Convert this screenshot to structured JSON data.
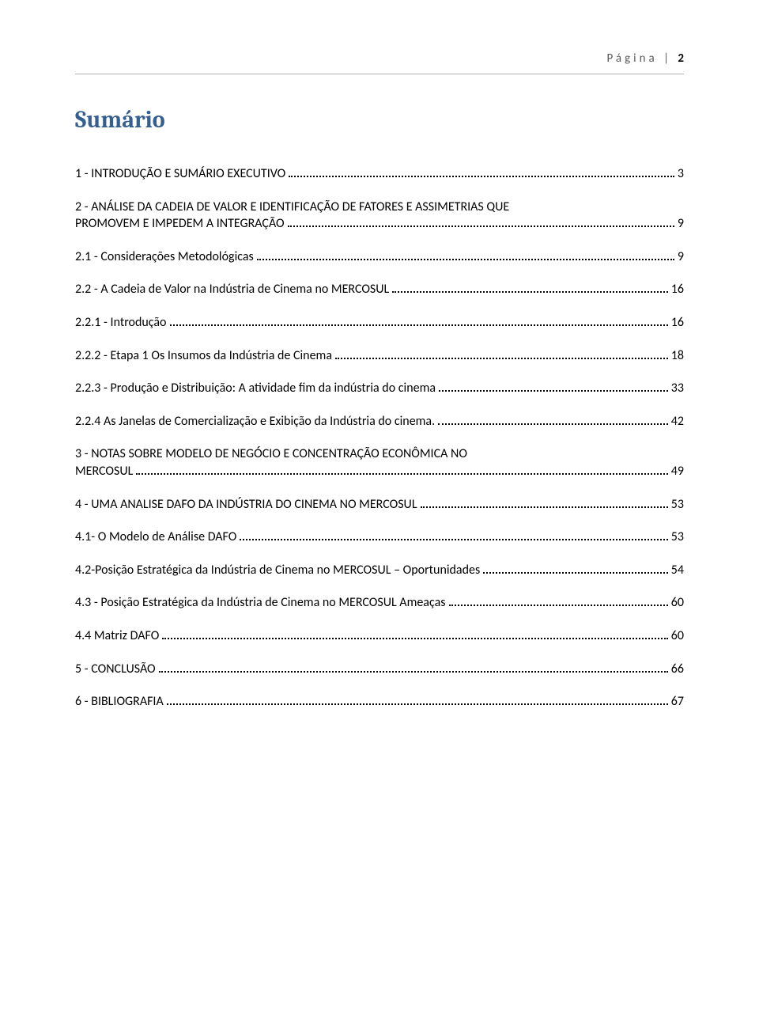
{
  "header": {
    "label": "Página",
    "separator": "|",
    "page_number": "2"
  },
  "title": "Sumário",
  "colors": {
    "title_color": "#365f91",
    "header_text_color": "#5a5a5a",
    "body_text_color": "#000000",
    "rule_color": "#b0b0b0",
    "background": "#ffffff"
  },
  "typography": {
    "title_font": "Cambria",
    "title_size_pt": 22,
    "body_font": "Calibri",
    "body_size_pt": 12
  },
  "toc": [
    {
      "level": 1,
      "text": "1 - INTRODUÇÃO E SUMÁRIO EXECUTIVO",
      "page": "3",
      "multiline": false
    },
    {
      "level": 1,
      "text": "2 - ANÁLISE DA CADEIA DE VALOR E IDENTIFICAÇÃO DE FATORES E ASSIMETRIAS QUE",
      "text2": "PROMOVEM E IMPEDEM A INTEGRAÇÃO",
      "page": "9",
      "multiline": true
    },
    {
      "level": 2,
      "text": "2.1 -  Considerações Metodológicas",
      "page": "9",
      "multiline": false
    },
    {
      "level": 2,
      "text": "2.2 - A Cadeia de Valor na Indústria de Cinema no MERCOSUL",
      "page": "16",
      "multiline": false
    },
    {
      "level": 3,
      "text": "2.2.1 - Introdução",
      "page": "16",
      "multiline": false
    },
    {
      "level": 3,
      "text": "2.2.2 - Etapa 1 Os Insumos da Indústria de Cinema",
      "page": "18",
      "multiline": false
    },
    {
      "level": 3,
      "text": "2.2.3 - Produção e Distribuição: A atividade fim da indústria do cinema",
      "page": "33",
      "multiline": false
    },
    {
      "level": 3,
      "text": "2.2.4 As Janelas de Comercialização e Exibição da Indústria do cinema.",
      "page": "42",
      "multiline": false
    },
    {
      "level": 1,
      "text": "3 - NOTAS SOBRE MODELO DE NEGÓCIO E CONCENTRAÇÃO ECONÔMICA NO",
      "text2": "MERCOSUL",
      "page": "49",
      "multiline": true
    },
    {
      "level": 1,
      "text": "4 - UMA ANALISE DAFO DA INDÚSTRIA DO CINEMA NO MERCOSUL",
      "page": "53",
      "multiline": false
    },
    {
      "level": 2,
      "text": "4.1- O Modelo de Análise DAFO",
      "page": "53",
      "multiline": false
    },
    {
      "level": 2,
      "text": "4.2-Posição Estratégica da Indústria de Cinema no MERCOSUL – Oportunidades",
      "page": "54",
      "multiline": false
    },
    {
      "level": 2,
      "text": "4.3 - Posição Estratégica da Indústria de Cinema no MERCOSUL Ameaças",
      "page": "60",
      "multiline": false
    },
    {
      "level": 2,
      "text": "4.4 Matriz DAFO",
      "page": "60",
      "multiline": false
    },
    {
      "level": 1,
      "text": "5 - CONCLUSÃO",
      "page": "66",
      "multiline": false
    },
    {
      "level": 1,
      "text": "6 - BIBLIOGRAFIA",
      "page": "67",
      "multiline": false
    }
  ]
}
